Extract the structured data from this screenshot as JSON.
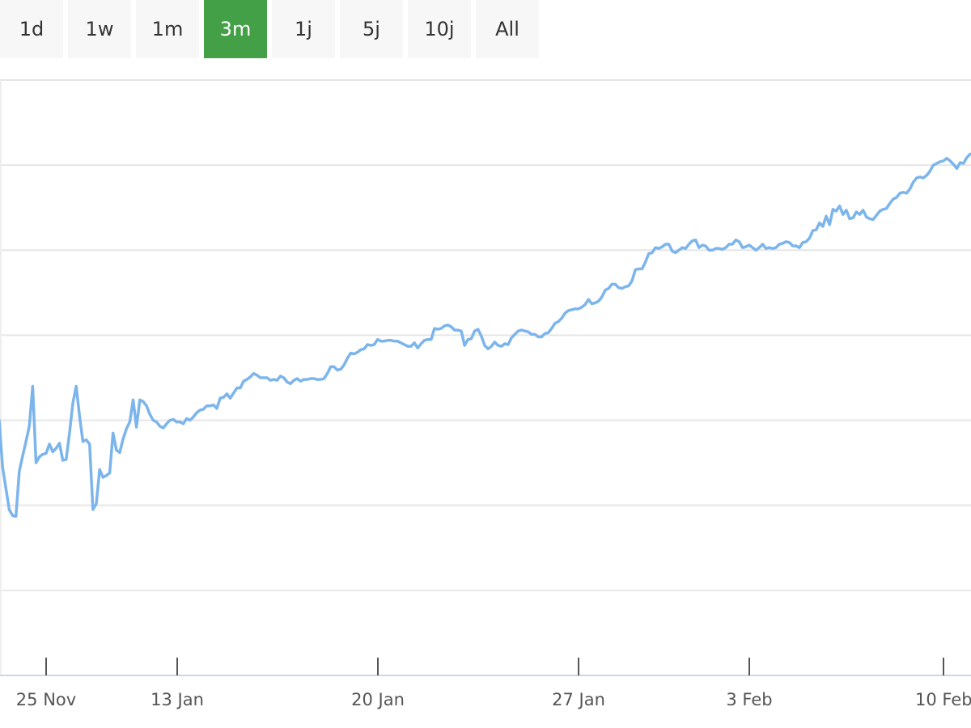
{
  "range_selector": {
    "buttons": [
      "1d",
      "1w",
      "1m",
      "3m",
      "1j",
      "5j",
      "10j",
      "All"
    ],
    "active": "3m",
    "active_color": "#43a047"
  },
  "chart_data": {
    "type": "line",
    "title": "",
    "xlabel": "",
    "ylabel": "",
    "grid": "horizontal",
    "line_color": "#7cb5ec",
    "x_tick_labels": [
      "25 Nov",
      "13 Jan",
      "20 Jan",
      "27 Jan",
      "3 Feb",
      "10 Feb"
    ],
    "ylim": [
      0,
      7
    ],
    "yticks": [
      1,
      2,
      3,
      4,
      5,
      6
    ],
    "series": [
      {
        "values": [
          3.0,
          2.45,
          2.2,
          1.95,
          1.88,
          1.87,
          2.4,
          2.58,
          2.75,
          2.93,
          3.4,
          2.5,
          2.57,
          2.6,
          2.61,
          2.72,
          2.63,
          2.67,
          2.73,
          2.53,
          2.54,
          2.85,
          3.2,
          3.4,
          3.05,
          2.75,
          2.77,
          2.72,
          1.95,
          2.02,
          2.42,
          2.33,
          2.35,
          2.38,
          2.85,
          2.65,
          2.62,
          2.78,
          2.9,
          2.98,
          3.24,
          2.92,
          3.24,
          3.22,
          3.17,
          3.07,
          3.0,
          2.98,
          2.93,
          2.91,
          2.96,
          3.0,
          3.01,
          2.98,
          2.98,
          2.96,
          3.02,
          3.0,
          3.04,
          3.09,
          3.12,
          3.13,
          3.17,
          3.17,
          3.18,
          3.14,
          3.26,
          3.27,
          3.31,
          3.26,
          3.32,
          3.38,
          3.38,
          3.46,
          3.48,
          3.51,
          3.55,
          3.53,
          3.5,
          3.5,
          3.5,
          3.47,
          3.48,
          3.47,
          3.52,
          3.5,
          3.45,
          3.43,
          3.47,
          3.49,
          3.46,
          3.48,
          3.48,
          3.49,
          3.49,
          3.48,
          3.48,
          3.49,
          3.55,
          3.63,
          3.63,
          3.59,
          3.6,
          3.65,
          3.73,
          3.79,
          3.78,
          3.8,
          3.83,
          3.84,
          3.89,
          3.88,
          3.89,
          3.95,
          3.93,
          3.93,
          3.94,
          3.94,
          3.93,
          3.93,
          3.91,
          3.89,
          3.87,
          3.87,
          3.91,
          3.85,
          3.9,
          3.94,
          3.95,
          3.95,
          4.08,
          4.07,
          4.08,
          4.11,
          4.12,
          4.1,
          4.06,
          4.06,
          4.05,
          3.88,
          3.95,
          3.96,
          4.05,
          4.07,
          3.99,
          3.88,
          3.84,
          3.87,
          3.92,
          3.88,
          3.87,
          3.9,
          3.89,
          3.97,
          4.01,
          4.05,
          4.06,
          4.05,
          4.04,
          4.01,
          4.01,
          3.98,
          3.98,
          4.02,
          4.03,
          4.08,
          4.14,
          4.16,
          4.2,
          4.26,
          4.29,
          4.3,
          4.31,
          4.31,
          4.33,
          4.36,
          4.42,
          4.37,
          4.38,
          4.4,
          4.45,
          4.53,
          4.55,
          4.6,
          4.6,
          4.56,
          4.55,
          4.57,
          4.58,
          4.64,
          4.77,
          4.78,
          4.78,
          4.86,
          4.96,
          4.97,
          5.03,
          5.02,
          5.04,
          5.07,
          5.07,
          4.99,
          4.97,
          5.0,
          5.03,
          5.02,
          5.07,
          5.11,
          5.12,
          5.03,
          5.06,
          5.05,
          5.0,
          5.0,
          5.02,
          5.02,
          5.01,
          5.03,
          5.07,
          5.07,
          5.12,
          5.1,
          5.03,
          5.04,
          5.06,
          5.03,
          5.0,
          5.03,
          5.07,
          5.02,
          5.03,
          5.02,
          5.03,
          5.07,
          5.08,
          5.1,
          5.09,
          5.05,
          5.05,
          5.03,
          5.09,
          5.1,
          5.14,
          5.23,
          5.24,
          5.32,
          5.28,
          5.4,
          5.3,
          5.48,
          5.46,
          5.52,
          5.42,
          5.47,
          5.37,
          5.38,
          5.45,
          5.42,
          5.47,
          5.39,
          5.37,
          5.36,
          5.41,
          5.46,
          5.48,
          5.49,
          5.55,
          5.6,
          5.62,
          5.67,
          5.68,
          5.67,
          5.72,
          5.8,
          5.85,
          5.86,
          5.85,
          5.88,
          5.93,
          6.0,
          6.02,
          6.04,
          6.05,
          6.08,
          6.05,
          6.01,
          5.96,
          6.03,
          6.02,
          6.09,
          6.13
        ]
      }
    ]
  }
}
